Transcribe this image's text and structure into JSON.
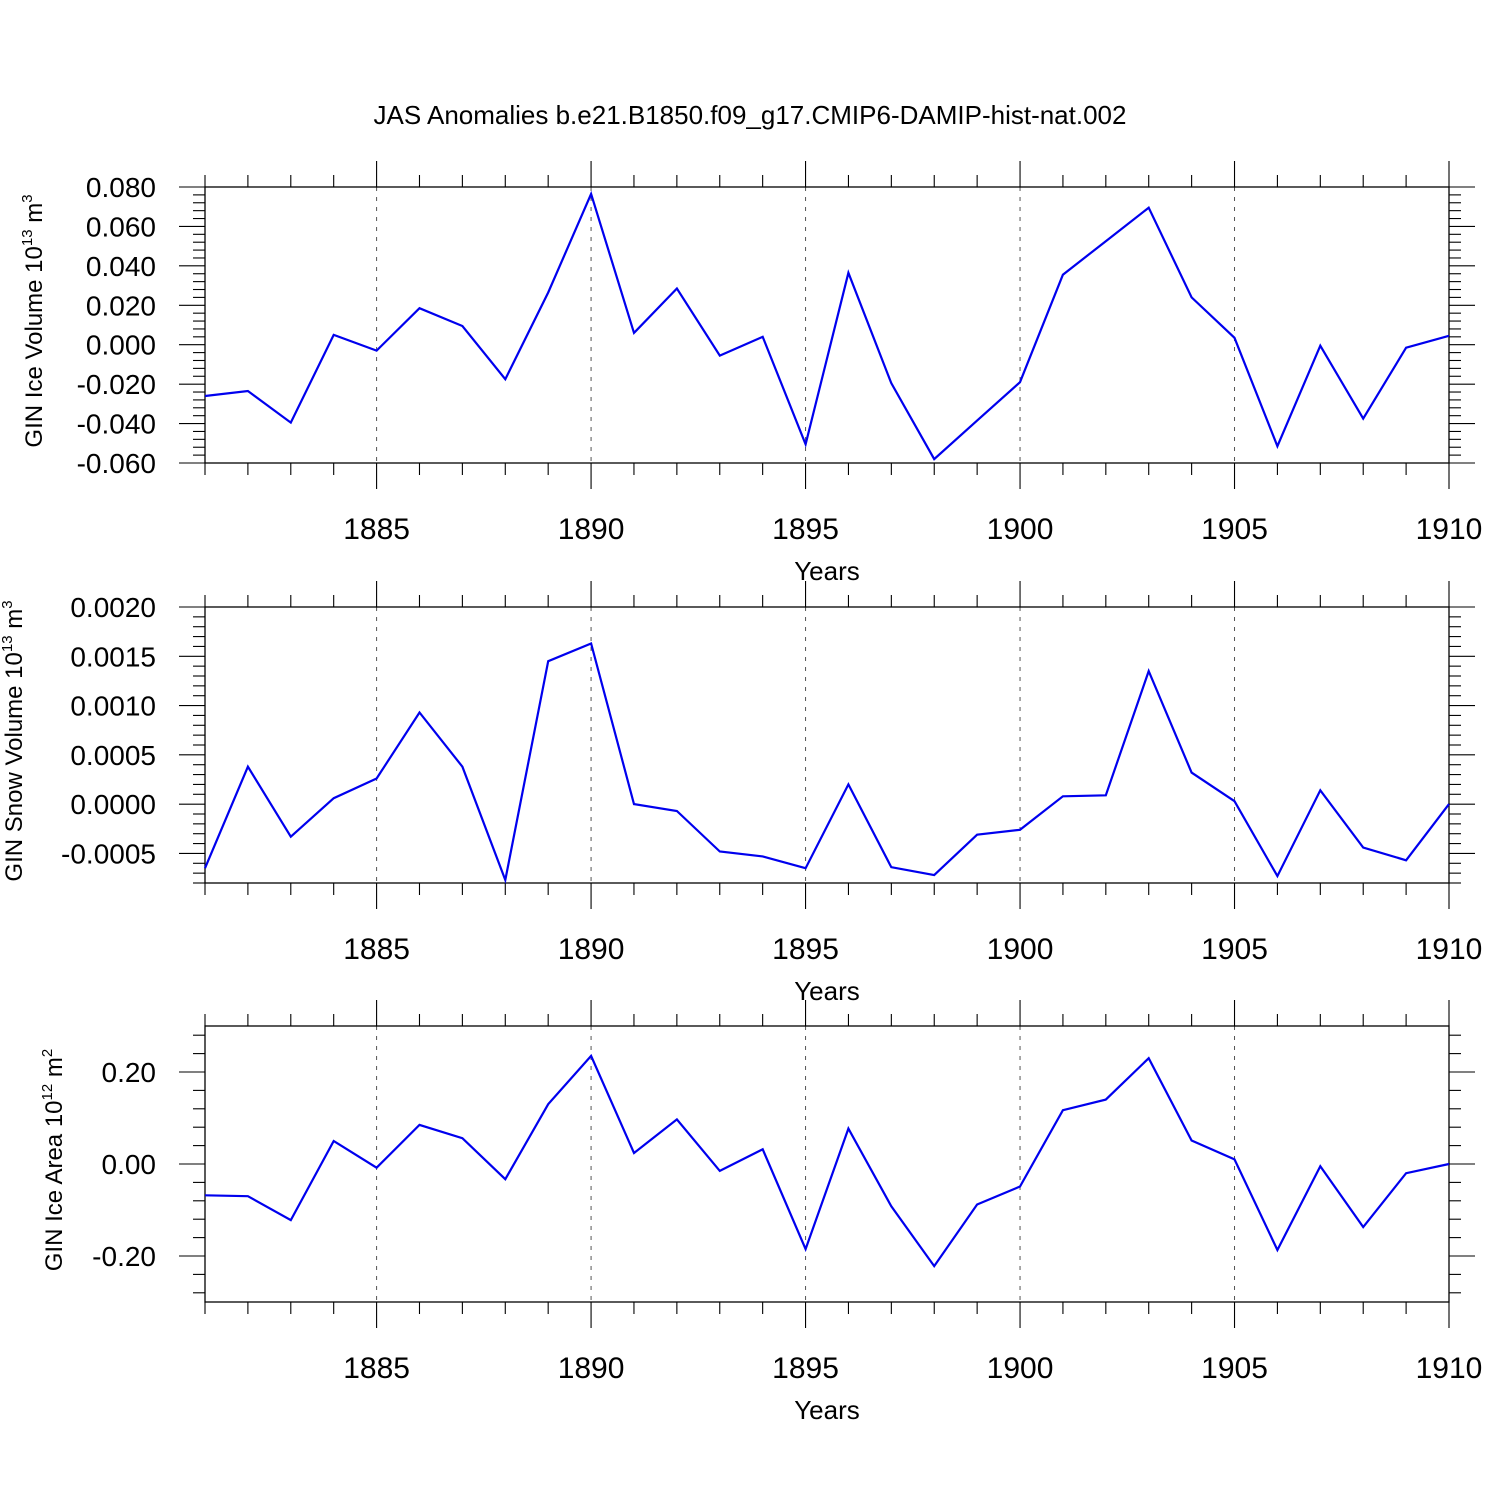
{
  "title": "JAS Anomalies b.e21.B1850.f09_g17.CMIP6-DAMIP-hist-nat.002",
  "chart_data": [
    {
      "type": "line",
      "ylabel_main": "GIN Ice Volume 10",
      "ylabel_exp": "13",
      "ylabel_unit": "m",
      "ylabel_unit_exp": "3",
      "xlabel": "Years",
      "xlim": [
        1881,
        1910
      ],
      "ylim": [
        -0.06,
        0.08
      ],
      "yticks": [
        0.08,
        0.06,
        0.04,
        0.02,
        0.0,
        -0.02,
        -0.04,
        -0.06
      ],
      "ytick_labels": [
        "0.080",
        "0.060",
        "0.040",
        "0.020",
        "0.000",
        "-0.020",
        "-0.040",
        "-0.060"
      ],
      "xticks": [
        1885,
        1890,
        1895,
        1900,
        1905,
        1910
      ],
      "xtick_labels": [
        "1885",
        "1890",
        "1895",
        "1900",
        "1905",
        "1910"
      ],
      "grid": "vertical dashed at major x ticks",
      "color": "#0000ee",
      "x": [
        1881,
        1882,
        1883,
        1884,
        1885,
        1886,
        1887,
        1888,
        1889,
        1890,
        1891,
        1892,
        1893,
        1894,
        1895,
        1896,
        1897,
        1898,
        1899,
        1900,
        1901,
        1902,
        1903,
        1904,
        1905,
        1906,
        1907,
        1908,
        1909,
        1910
      ],
      "y": [
        -0.026,
        -0.0235,
        -0.0395,
        0.005,
        -0.003,
        0.0185,
        0.0095,
        -0.0175,
        0.0265,
        0.0765,
        0.006,
        0.0285,
        -0.0055,
        0.004,
        -0.0505,
        0.0365,
        -0.0195,
        -0.058,
        -0.0385,
        -0.019,
        0.0355,
        0.0525,
        0.0695,
        0.024,
        0.0035,
        -0.0515,
        -0.0005,
        -0.0375,
        -0.0015,
        0.0045
      ]
    },
    {
      "type": "line",
      "ylabel_main": "GIN Snow Volume 10",
      "ylabel_exp": "13",
      "ylabel_unit": "m",
      "ylabel_unit_exp": "3",
      "xlabel": "Years",
      "xlim": [
        1881,
        1910
      ],
      "ylim": [
        -0.0008,
        0.002
      ],
      "yticks": [
        0.002,
        0.0015,
        0.001,
        0.0005,
        0.0,
        -0.0005
      ],
      "ytick_labels": [
        "0.0020",
        "0.0015",
        "0.0010",
        "0.0005",
        "0.0000",
        "-0.0005"
      ],
      "xticks": [
        1885,
        1890,
        1895,
        1900,
        1905,
        1910
      ],
      "xtick_labels": [
        "1885",
        "1890",
        "1895",
        "1900",
        "1905",
        "1910"
      ],
      "grid": "vertical dashed at major x ticks",
      "color": "#0000ee",
      "x": [
        1881,
        1882,
        1883,
        1884,
        1885,
        1886,
        1887,
        1888,
        1889,
        1890,
        1891,
        1892,
        1893,
        1894,
        1895,
        1896,
        1897,
        1898,
        1899,
        1900,
        1901,
        1902,
        1903,
        1904,
        1905,
        1906,
        1907,
        1908,
        1909,
        1910
      ],
      "y": [
        -0.00065,
        0.00038,
        -0.00033,
        6e-05,
        0.00026,
        0.00093,
        0.00038,
        -0.00077,
        0.00145,
        0.00163,
        0.0,
        -7e-05,
        -0.00048,
        -0.00053,
        -0.00065,
        0.0002,
        -0.00064,
        -0.00072,
        -0.00031,
        -0.00026,
        8e-05,
        9e-05,
        0.00135,
        0.00032,
        3e-05,
        -0.00073,
        0.00014,
        -0.00044,
        -0.00057,
        0.0
      ]
    },
    {
      "type": "line",
      "ylabel_main": "GIN Ice Area 10",
      "ylabel_exp": "12",
      "ylabel_unit": "m",
      "ylabel_unit_exp": "2",
      "xlabel": "Years",
      "xlim": [
        1881,
        1910
      ],
      "ylim": [
        -0.3,
        0.3
      ],
      "yticks": [
        0.2,
        0.0,
        -0.2
      ],
      "ytick_labels": [
        "0.20",
        "0.00",
        "-0.20"
      ],
      "xticks": [
        1885,
        1890,
        1895,
        1900,
        1905,
        1910
      ],
      "xtick_labels": [
        "1885",
        "1890",
        "1895",
        "1900",
        "1905",
        "1910"
      ],
      "grid": "vertical dashed at major x ticks",
      "color": "#0000ee",
      "x": [
        1881,
        1882,
        1883,
        1884,
        1885,
        1886,
        1887,
        1888,
        1889,
        1890,
        1891,
        1892,
        1893,
        1894,
        1895,
        1896,
        1897,
        1898,
        1899,
        1900,
        1901,
        1902,
        1903,
        1904,
        1905,
        1906,
        1907,
        1908,
        1909,
        1910
      ],
      "y": [
        -0.068,
        -0.07,
        -0.122,
        0.05,
        -0.008,
        0.085,
        0.056,
        -0.033,
        0.13,
        0.235,
        0.024,
        0.097,
        -0.015,
        0.032,
        -0.185,
        0.077,
        -0.092,
        -0.222,
        -0.088,
        -0.049,
        0.117,
        0.14,
        0.23,
        0.051,
        0.01,
        -0.187,
        -0.005,
        -0.137,
        -0.02,
        0.0
      ]
    }
  ]
}
